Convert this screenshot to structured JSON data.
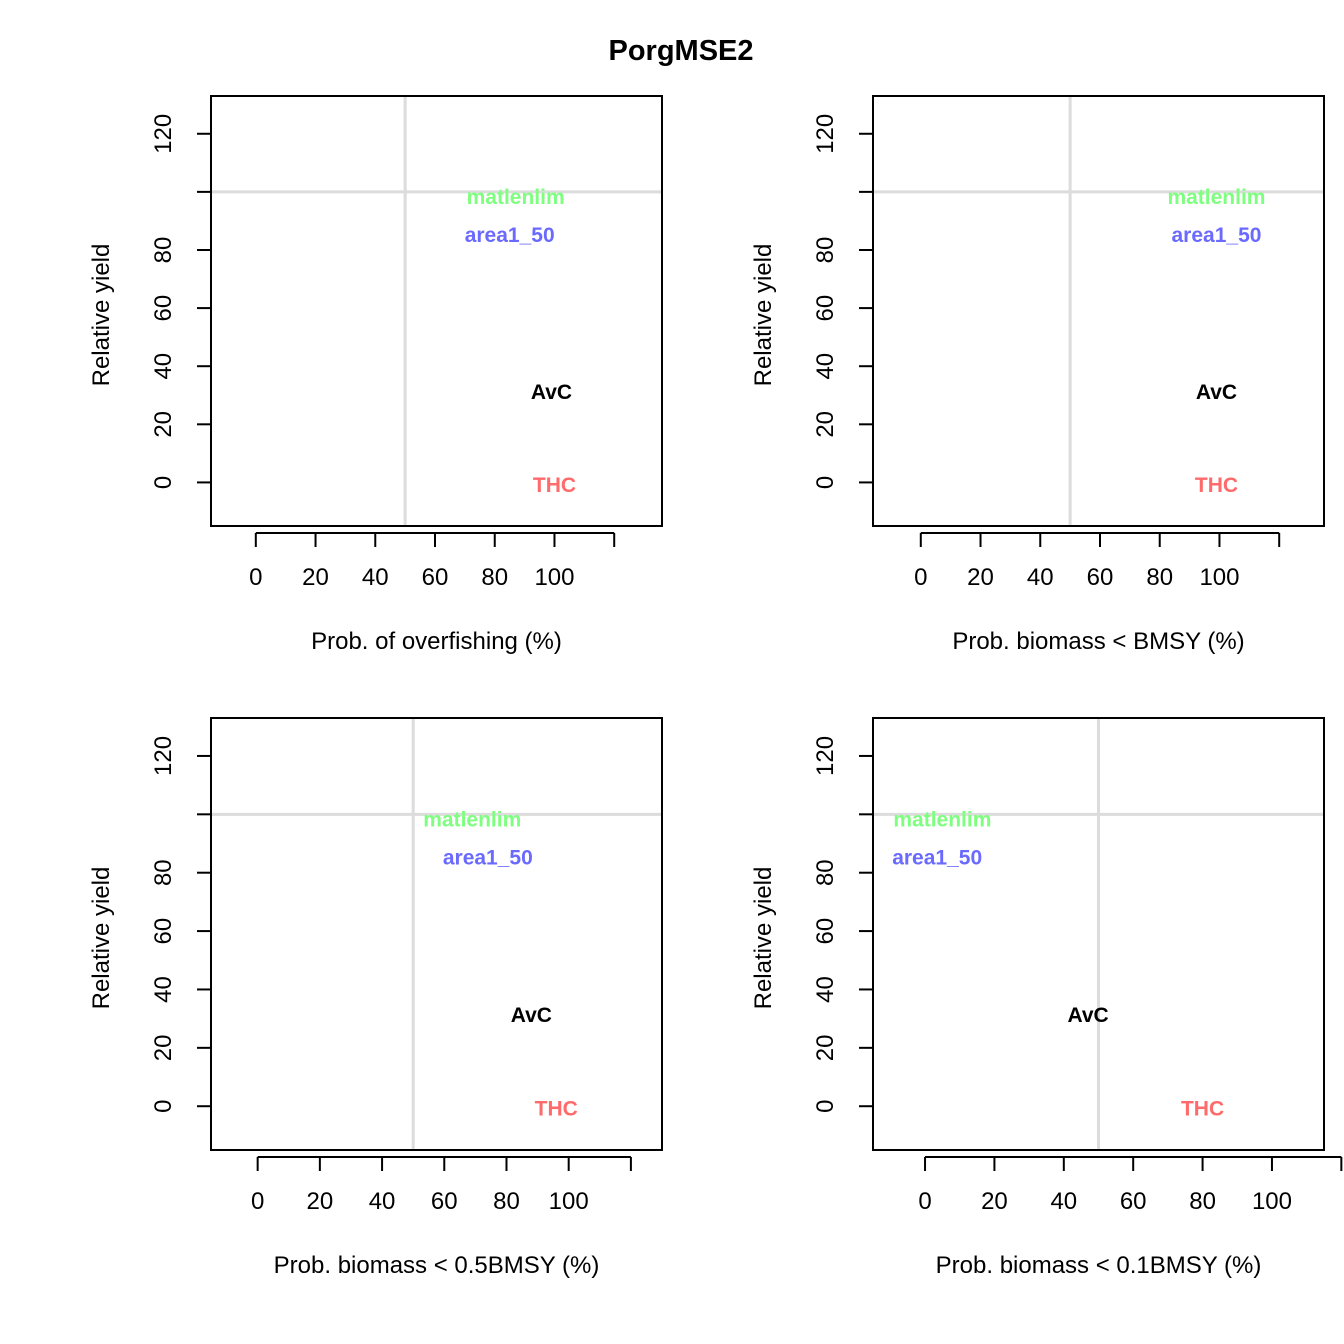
{
  "figure": {
    "title": "PorgMSE2"
  },
  "chart_data": [
    {
      "type": "scatter",
      "xlabel": "Prob. of overfishing (%)",
      "ylabel": "Relative yield",
      "x_ticks": [
        0,
        20,
        40,
        60,
        80,
        100
      ],
      "y_ticks": [
        0,
        20,
        40,
        60,
        80,
        120
      ],
      "xlim": [
        -15,
        136
      ],
      "ylim": [
        -15,
        133
      ],
      "reference_lines": {
        "x": 50,
        "y": 100
      },
      "points": [
        {
          "label": "matlenlim",
          "x": 87,
          "y": 98,
          "color": "#7fff7f"
        },
        {
          "label": "area1_50",
          "x": 85,
          "y": 85,
          "color": "#6a6aff"
        },
        {
          "label": "AvC",
          "x": 99,
          "y": 31,
          "color": "#000000"
        },
        {
          "label": "THC",
          "x": 100,
          "y": -1,
          "color": "#ff6a6a"
        }
      ]
    },
    {
      "type": "scatter",
      "xlabel": "Prob. biomass < BMSY (%)",
      "ylabel": "Relative yield",
      "x_ticks": [
        0,
        20,
        40,
        60,
        80,
        100
      ],
      "y_ticks": [
        0,
        20,
        40,
        60,
        80,
        120
      ],
      "xlim": [
        -16,
        135
      ],
      "ylim": [
        -15,
        133
      ],
      "reference_lines": {
        "x": 50,
        "y": 100
      },
      "points": [
        {
          "label": "matlenlim",
          "x": 99,
          "y": 98,
          "color": "#7fff7f"
        },
        {
          "label": "area1_50",
          "x": 99,
          "y": 85,
          "color": "#6a6aff"
        },
        {
          "label": "AvC",
          "x": 99,
          "y": 31,
          "color": "#000000"
        },
        {
          "label": "THC",
          "x": 99,
          "y": -1,
          "color": "#ff6a6a"
        }
      ]
    },
    {
      "type": "scatter",
      "xlabel": "Prob. biomass < 0.5BMSY (%)",
      "ylabel": "Relative yield",
      "x_ticks": [
        0,
        20,
        40,
        60,
        80,
        100
      ],
      "y_ticks": [
        0,
        20,
        40,
        60,
        80,
        120
      ],
      "xlim": [
        -15,
        130
      ],
      "ylim": [
        -15,
        133
      ],
      "reference_lines": {
        "x": 50,
        "y": 100
      },
      "points": [
        {
          "label": "matlenlim",
          "x": 69,
          "y": 98,
          "color": "#7fff7f"
        },
        {
          "label": "area1_50",
          "x": 74,
          "y": 85,
          "color": "#6a6aff"
        },
        {
          "label": "AvC",
          "x": 88,
          "y": 31,
          "color": "#000000"
        },
        {
          "label": "THC",
          "x": 96,
          "y": -1,
          "color": "#ff6a6a"
        }
      ]
    },
    {
      "type": "scatter",
      "xlabel": "Prob. biomass < 0.1BMSY (%)",
      "ylabel": "Relative yield",
      "x_ticks": [
        0,
        20,
        40,
        60,
        80,
        100
      ],
      "y_ticks": [
        0,
        20,
        40,
        60,
        80,
        120
      ],
      "xlim": [
        -15,
        115
      ],
      "ylim": [
        -15,
        133
      ],
      "reference_lines": {
        "x": 50,
        "y": 100
      },
      "points": [
        {
          "label": "matlenlim",
          "x": 5,
          "y": 98,
          "color": "#7fff7f"
        },
        {
          "label": "area1_50",
          "x": 3.5,
          "y": 85,
          "color": "#6a6aff"
        },
        {
          "label": "AvC",
          "x": 47,
          "y": 31,
          "color": "#000000"
        },
        {
          "label": "THC",
          "x": 80,
          "y": -1,
          "color": "#ff6a6a"
        }
      ]
    }
  ]
}
